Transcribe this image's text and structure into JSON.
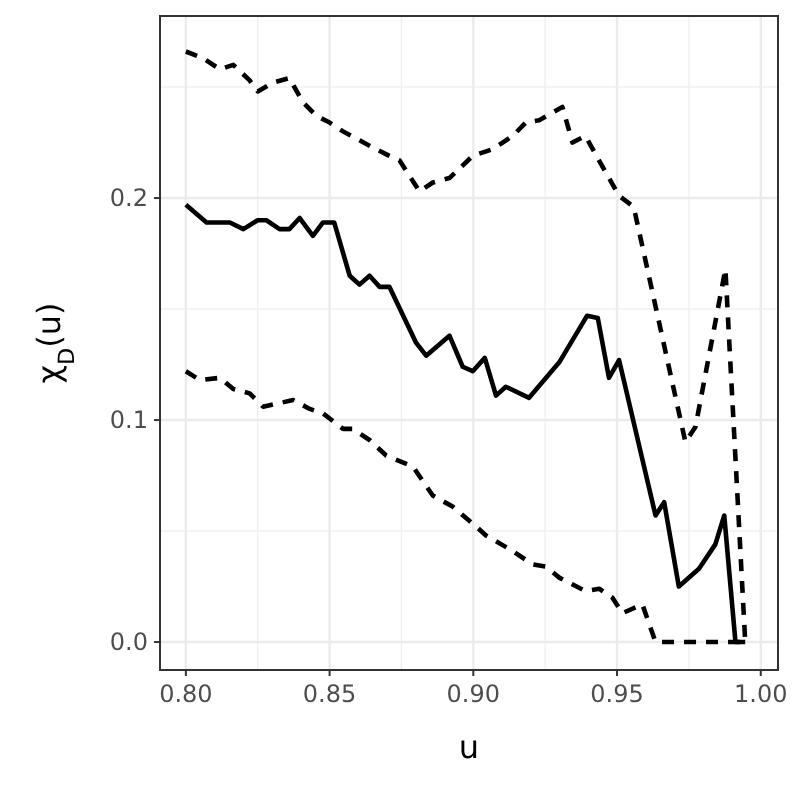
{
  "chart_data": {
    "type": "line",
    "xlabel": "u",
    "ylabel": "χ$_{D}$(u)",
    "xlim": [
      0.791,
      1.006
    ],
    "ylim": [
      -0.0126,
      0.282
    ],
    "xticks": [
      {
        "value": 0.8,
        "label": "0.80"
      },
      {
        "value": 0.85,
        "label": "0.85"
      },
      {
        "value": 0.9,
        "label": "0.90"
      },
      {
        "value": 0.95,
        "label": "0.95"
      },
      {
        "value": 1,
        "label": "1.00"
      }
    ],
    "yticks": [
      {
        "value": 0,
        "label": "0.0"
      },
      {
        "value": 0.1,
        "label": "0.1"
      },
      {
        "value": 0.2,
        "label": "0.2"
      }
    ],
    "grid": true,
    "series": [
      {
        "color": "#000000",
        "line_style": "solid",
        "x": [
          0.8,
          0.8072,
          0.8153,
          0.82,
          0.825,
          0.828,
          0.8326,
          0.836,
          0.8396,
          0.8442,
          0.8477,
          0.8516,
          0.857,
          0.8604,
          0.8639,
          0.8674,
          0.8708,
          0.88,
          0.8836,
          0.8917,
          0.8963,
          0.8998,
          0.904,
          0.9079,
          0.9113,
          0.9194,
          0.9299,
          0.9396,
          0.9433,
          0.9472,
          0.9507,
          0.9634,
          0.9664,
          0.9715,
          0.9785,
          0.9842,
          0.9873,
          0.9912,
          0.9946
        ],
        "values": [
          0.197,
          0.189,
          0.189,
          0.186,
          0.19,
          0.19,
          0.186,
          0.186,
          0.191,
          0.183,
          0.189,
          0.189,
          0.165,
          0.161,
          0.165,
          0.16,
          0.16,
          0.135,
          0.129,
          0.138,
          0.124,
          0.122,
          0.128,
          0.111,
          0.115,
          0.11,
          0.126,
          0.147,
          0.146,
          0.119,
          0.127,
          0.057,
          0.063,
          0.025,
          0.033,
          0.044,
          0.057,
          0,
          0
        ]
      },
      {
        "color": "#000000",
        "line_style": "dashed",
        "x": [
          0.8,
          0.806,
          0.8118,
          0.8165,
          0.8222,
          0.825,
          0.8303,
          0.836,
          0.8408,
          0.8454,
          0.85,
          0.8547,
          0.8604,
          0.8662,
          0.8708,
          0.8743,
          0.8778,
          0.8813,
          0.8859,
          0.8917,
          0.8998,
          0.9067,
          0.9137,
          0.9183,
          0.9229,
          0.931,
          0.9345,
          0.939,
          0.945,
          0.9507,
          0.9558,
          0.9738,
          0.9773,
          0.9877,
          0.9946
        ],
        "values": [
          0.266,
          0.263,
          0.258,
          0.26,
          0.253,
          0.248,
          0.252,
          0.254,
          0.243,
          0.237,
          0.234,
          0.23,
          0.226,
          0.222,
          0.219,
          0.217,
          0.21,
          0.203,
          0.207,
          0.209,
          0.219,
          0.222,
          0.228,
          0.234,
          0.235,
          0.241,
          0.225,
          0.228,
          0.214,
          0.201,
          0.196,
          0.09,
          0.097,
          0.168,
          0
        ]
      },
      {
        "color": "#000000",
        "line_style": "dashed",
        "x": [
          0.8,
          0.8049,
          0.8118,
          0.8165,
          0.8222,
          0.8269,
          0.8373,
          0.8431,
          0.8477,
          0.8547,
          0.8581,
          0.8639,
          0.8697,
          0.879,
          0.8859,
          0.8928,
          0.901,
          0.9044,
          0.9137,
          0.9206,
          0.9252,
          0.9299,
          0.939,
          0.9438,
          0.9484,
          0.9519,
          0.9588,
          0.9634,
          0.9946
        ],
        "values": [
          0.122,
          0.118,
          0.119,
          0.114,
          0.112,
          0.106,
          0.109,
          0.105,
          0.103,
          0.096,
          0.096,
          0.091,
          0.084,
          0.079,
          0.066,
          0.061,
          0.052,
          0.048,
          0.041,
          0.035,
          0.034,
          0.029,
          0.023,
          0.024,
          0.02,
          0.013,
          0.017,
          0,
          0
        ]
      }
    ]
  }
}
